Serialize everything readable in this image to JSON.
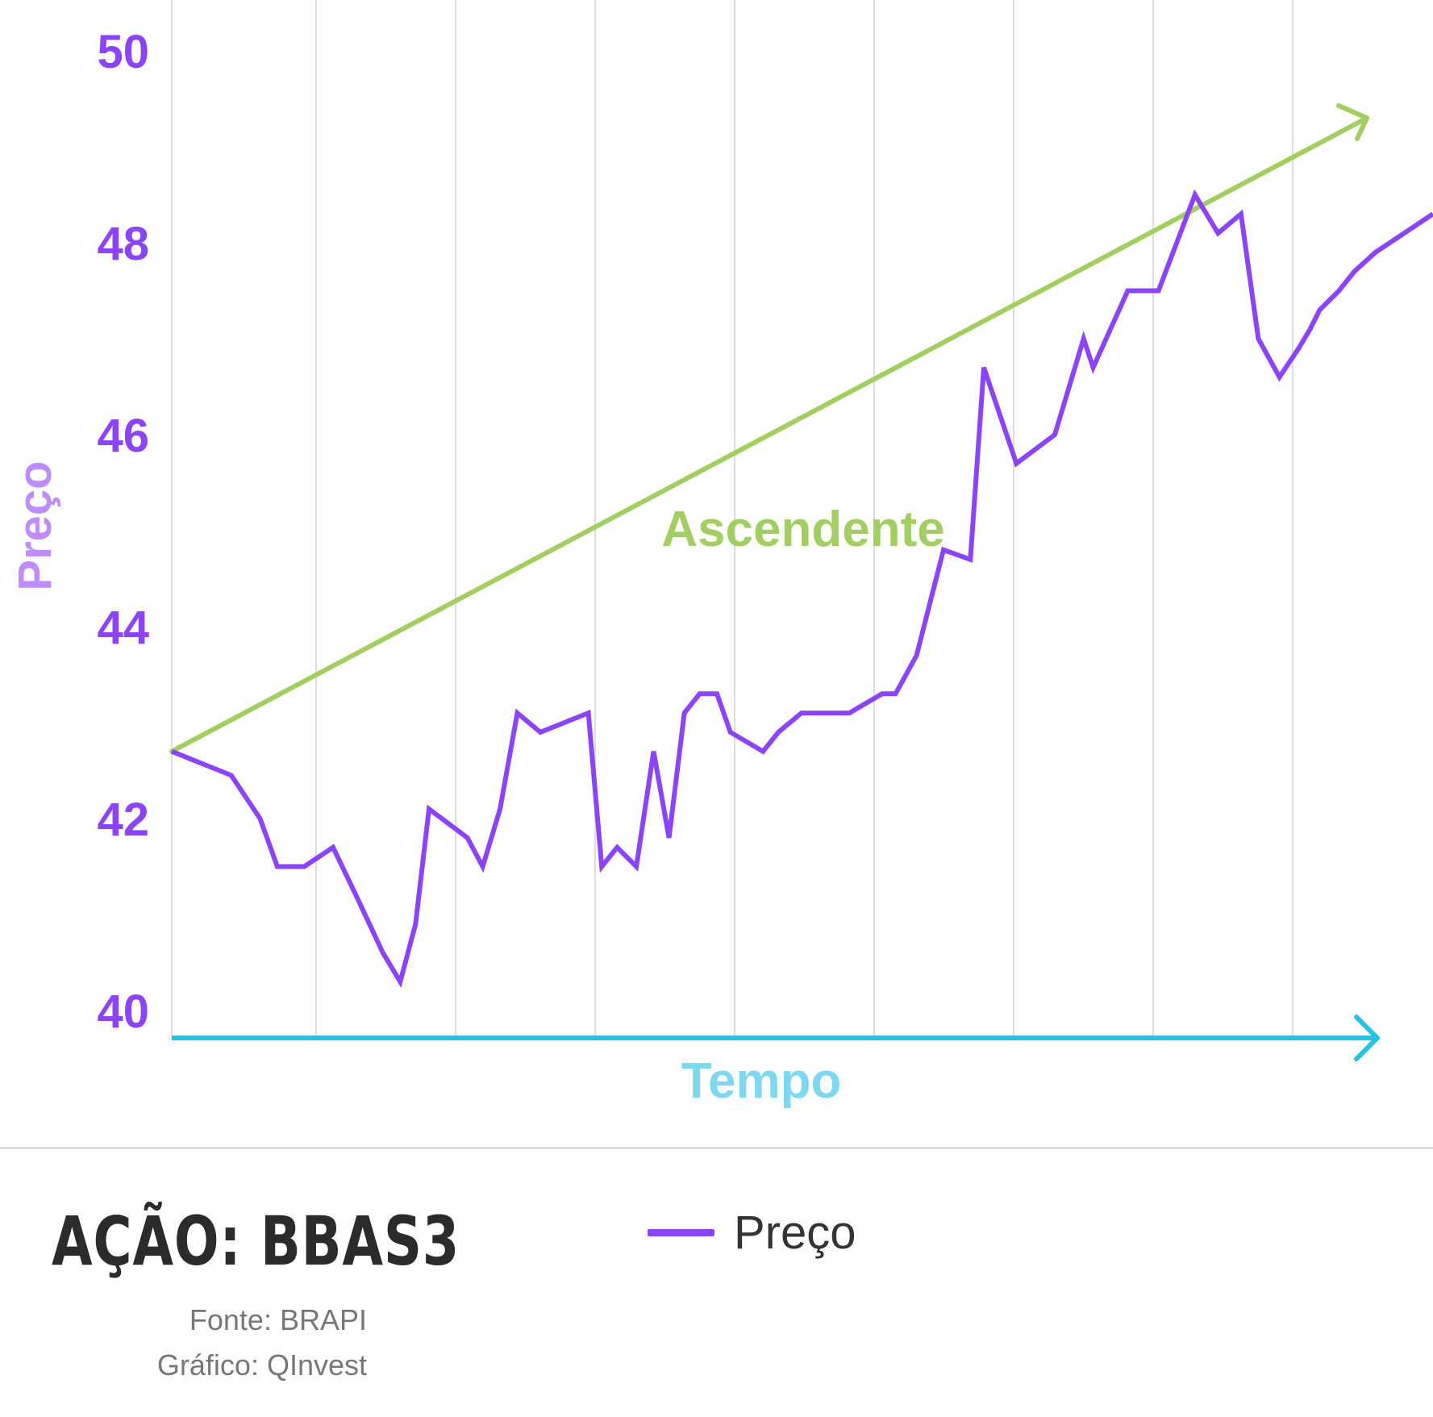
{
  "colors": {
    "price_line": "#8b44f7",
    "tick_text": "#8b44f7",
    "ylabel_text": "#bf8df9",
    "trend_arrow": "#a3cf62",
    "time_arrow": "#28c1e3",
    "time_label": "#7fd8ef",
    "grid": "#dddddd"
  },
  "chart_data": {
    "type": "line",
    "xlabel": "Tempo",
    "ylabel": "Preço",
    "ylim": [
      40,
      50
    ],
    "yticks": [
      "40",
      "42",
      "44",
      "46",
      "48",
      "50"
    ],
    "grid": "vertical",
    "annotation": "Ascendente",
    "trend_arrow": {
      "start_y": 42.7,
      "end_y": 49.3
    },
    "series": [
      {
        "name": "Preço",
        "x": [
          0,
          3.1,
          4.6,
          5.5,
          6.9,
          8.4,
          9.6,
          11.0,
          11.9,
          12.7,
          13.4,
          15.4,
          16.2,
          17.1,
          18.0,
          19.2,
          21.7,
          22.4,
          23.2,
          24.2,
          25.1,
          25.9,
          26.7,
          27.5,
          28.4,
          29.1,
          30.8,
          31.6,
          32.8,
          35.3,
          37.0,
          37.7,
          38.8,
          40.2,
          41.6,
          42.3,
          44.0,
          46.0,
          47.5,
          48.0,
          49.8,
          51.4,
          53.3,
          54.5,
          55.7,
          56.6,
          57.7,
          58.7,
          59.3,
          59.8,
          60.8,
          61.6,
          62.7,
          64.2,
          65.7
        ],
        "values": [
          42.7,
          42.45,
          42.0,
          41.5,
          41.5,
          41.7,
          41.2,
          40.6,
          40.3,
          40.9,
          42.1,
          41.8,
          41.5,
          42.1,
          43.1,
          42.9,
          43.1,
          41.5,
          41.7,
          41.5,
          42.7,
          41.8,
          43.1,
          43.3,
          43.3,
          42.9,
          42.7,
          42.9,
          43.1,
          43.1,
          43.3,
          43.3,
          43.7,
          44.8,
          44.7,
          46.7,
          45.7,
          46.0,
          47.0,
          46.7,
          47.5,
          47.5,
          48.5,
          48.1,
          48.3,
          47.0,
          46.6,
          46.9,
          47.1,
          47.3,
          47.5,
          47.7,
          47.9,
          48.1,
          48.3
        ]
      }
    ],
    "legend_placement": "bottom-center"
  },
  "footer": {
    "title": "AÇÃO: BBAS3",
    "source": "Fonte: BRAPI",
    "credit": "Gráfico: QInvest",
    "legend_label": "Preço"
  }
}
